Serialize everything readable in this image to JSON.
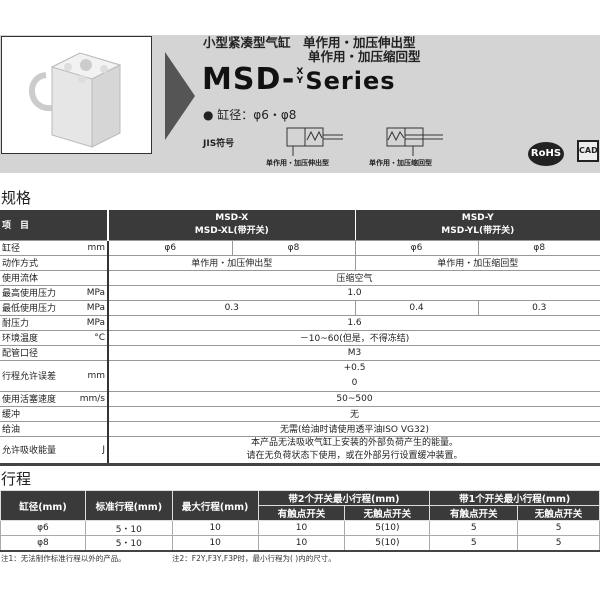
{
  "banner": {
    "line1": "小型紧凑型气缸　单作用・加压伸出型",
    "line2": "单作用・加压缩回型",
    "model_prefix": "MSD-",
    "model_x": "X",
    "model_y": "Y",
    "model_suffix": "Series",
    "bore": "● 缸径：φ6・φ8",
    "jis_label": "JIS符号",
    "symbol1_label": "单作用・加压伸出型",
    "symbol2_label": "单作用・加压缩回型",
    "rohs": "RoHS",
    "cad": "CAD"
  },
  "spec": {
    "title": "规格",
    "header": {
      "item": "项　目",
      "x_line1": "MSD-X",
      "x_line2": "MSD-XL(带开关)",
      "y_line1": "MSD-Y",
      "y_line2": "MSD-YL(带开关)"
    },
    "rows": [
      {
        "label": "缸径",
        "unit": "mm",
        "values": [
          "φ6",
          "φ8",
          "φ6",
          "φ8"
        ]
      },
      {
        "label": "动作方式",
        "unit": "",
        "values": [
          "单作用・加压伸出型",
          "单作用・加压缩回型"
        ]
      },
      {
        "label": "使用流体",
        "unit": "",
        "values": [
          "压缩空气"
        ]
      },
      {
        "label": "最高使用压力",
        "unit": "MPa",
        "values": [
          "1.0"
        ]
      },
      {
        "label": "最低使用压力",
        "unit": "MPa",
        "values": [
          "0.3",
          "0.4",
          "0.3"
        ]
      },
      {
        "label": "耐压力",
        "unit": "MPa",
        "values": [
          "1.6"
        ]
      },
      {
        "label": "环境温度",
        "unit": "°C",
        "values": [
          "－10~60(但是，不得冻结)"
        ]
      },
      {
        "label": "配管口径",
        "unit": "",
        "values": [
          "M3"
        ]
      },
      {
        "label": "行程允许误差",
        "unit": "mm",
        "values": [
          "+0.5",
          "0"
        ]
      },
      {
        "label": "使用活塞速度",
        "unit": "mm/s",
        "values": [
          "50~500"
        ]
      },
      {
        "label": "缓冲",
        "unit": "",
        "values": [
          "无"
        ]
      },
      {
        "label": "给油",
        "unit": "",
        "values": [
          "无需(给油时请使用透平油ISO VG32)"
        ]
      },
      {
        "label": "允许吸收能量",
        "unit": "J",
        "values": [
          "本产品无法吸收气缸上安装的外部负荷产生的能量。",
          "请在无负荷状态下使用，或在外部另行设置缓冲装置。"
        ]
      }
    ]
  },
  "stroke": {
    "title": "行程",
    "headers": {
      "bore": "缸径(mm)",
      "std": "标准行程(mm)",
      "max": "最大行程(mm)",
      "two": "带2个开关最小行程(mm)",
      "one": "带1个开关最小行程(mm)",
      "contact": "有触点开关",
      "solid": "无触点开关"
    },
    "rows": [
      [
        "φ6",
        "5・10",
        "10",
        "10",
        "5(10)",
        "5",
        "5"
      ],
      [
        "φ8",
        "5・10",
        "10",
        "10",
        "5(10)",
        "5",
        "5"
      ]
    ],
    "note1": "注1：无法制作标准行程以外的产品。",
    "note2": "注2：F2Y,F3Y,F3P时，最小行程为( )内的尺寸。"
  }
}
